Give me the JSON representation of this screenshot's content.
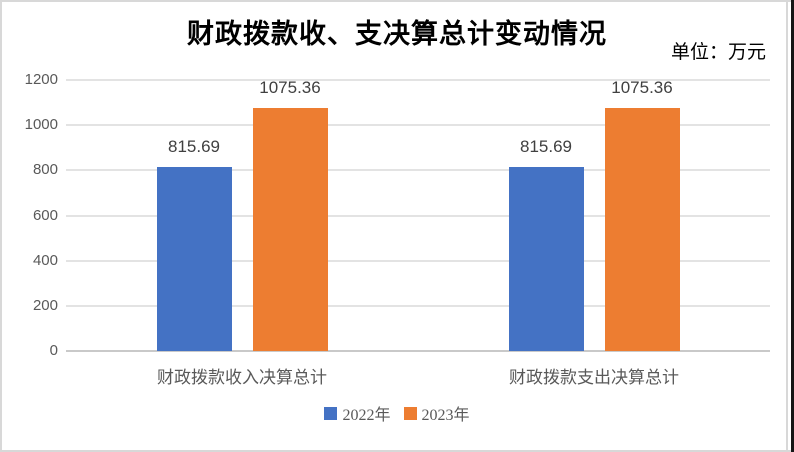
{
  "figure": {
    "title": "财政拨款收、支决算总计变动情况",
    "unit_label": "单位：万元"
  },
  "chart_data": {
    "type": "bar",
    "title": "财政拨款收、支决算总计变动情况",
    "unit": "万元",
    "categories": [
      "财政拨款收入决算总计",
      "财政拨款支出决算总计"
    ],
    "series": [
      {
        "name": "2022年",
        "color": "#4472C4",
        "values": [
          815.69,
          815.69
        ]
      },
      {
        "name": "2023年",
        "color": "#ED7D31",
        "values": [
          1075.36,
          1075.36
        ]
      }
    ],
    "ylim": [
      0,
      1200
    ],
    "yticks": [
      0,
      200,
      400,
      600,
      800,
      1000,
      1200
    ],
    "grid": true,
    "legend_position": "bottom",
    "data_labels": true
  },
  "colors": {
    "series_2022": "#4472C4",
    "series_2023": "#ED7D31",
    "gridline": "#E3E3E3",
    "axis_text": "#595959",
    "data_label_text": "#404040",
    "frame_border": "#D8D8D8",
    "right_edge_line": "#161616"
  }
}
